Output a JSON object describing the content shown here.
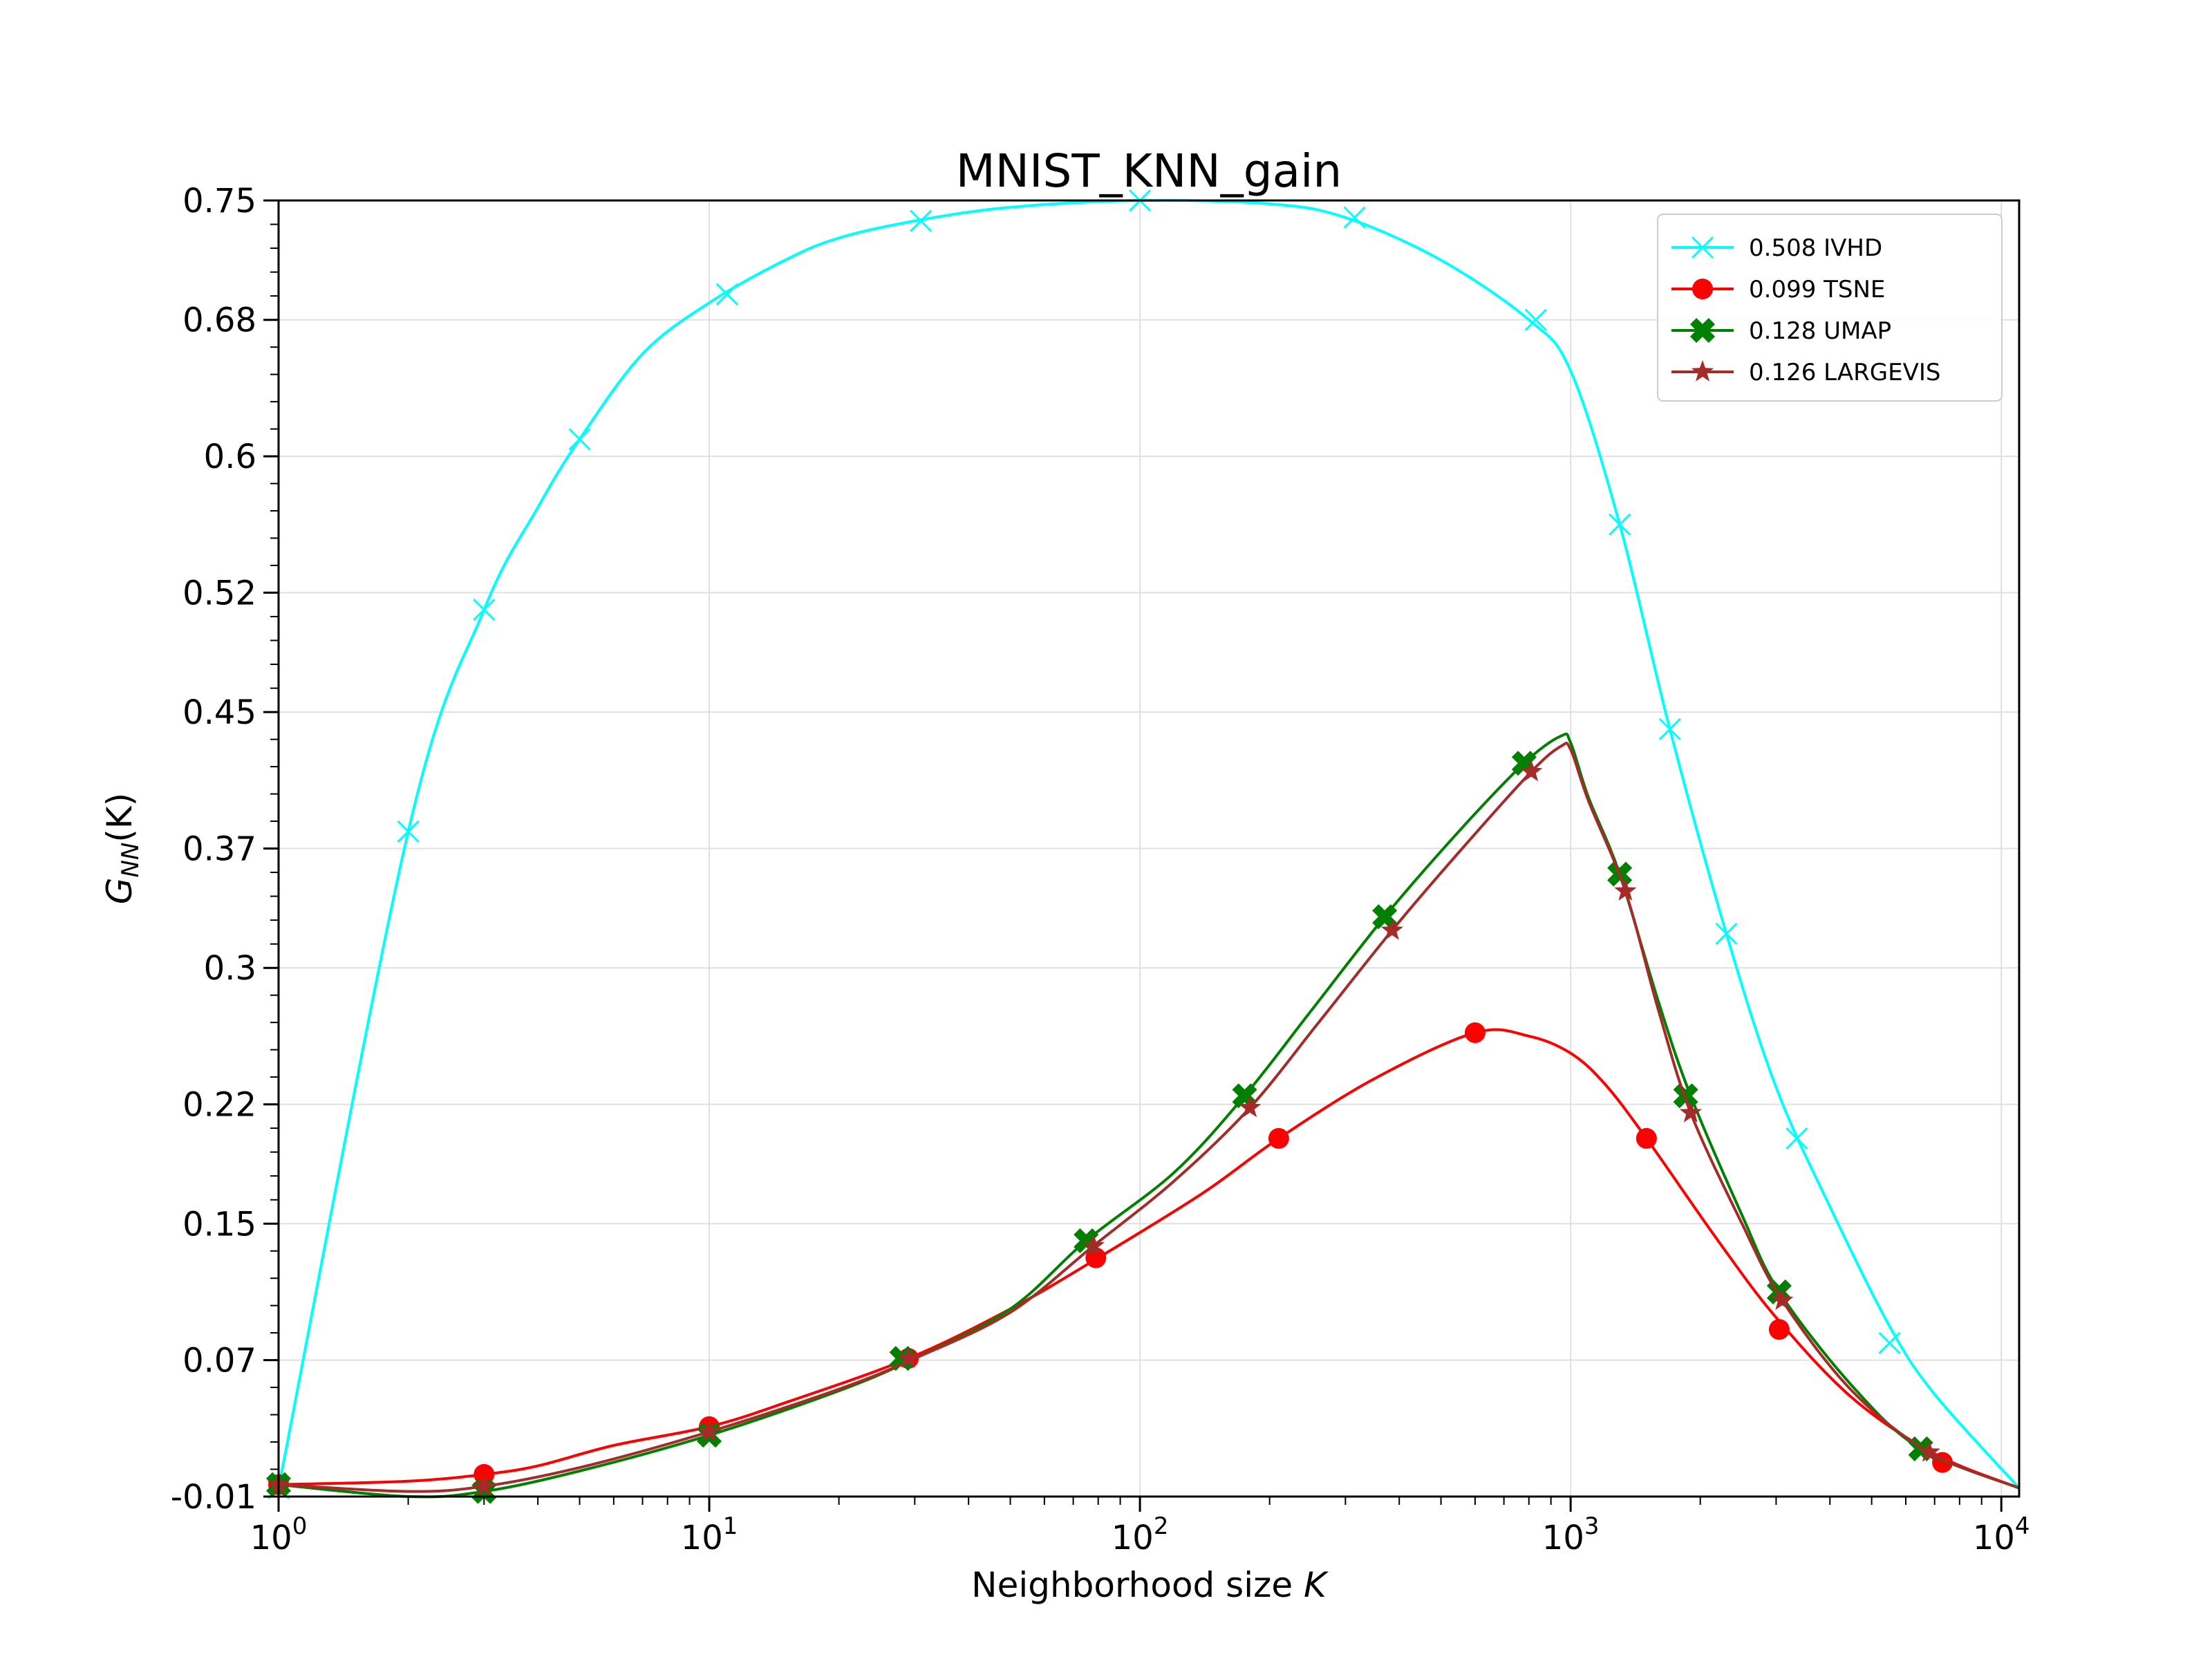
{
  "chart_data": {
    "type": "line",
    "title": "MNIST_KNN_gain",
    "xlabel_prefix": "Neighborhood size ",
    "xlabel_var": "K",
    "ylabel_main": "G",
    "ylabel_sub": "NN",
    "ylabel_arg": "(K)",
    "xscale": "log",
    "xlim": [
      1,
      11000
    ],
    "ylim": [
      -0.01,
      0.75
    ],
    "grid": true,
    "legend_position": "top-right",
    "x_tick_labels": [
      "10",
      "10",
      "10",
      "10",
      "10"
    ],
    "x_tick_exponents": [
      "0",
      "1",
      "2",
      "3",
      "4"
    ],
    "x_ticks": [
      1,
      10,
      100,
      1000,
      10000
    ],
    "y_ticks": [
      -0.01,
      0.07,
      0.15,
      0.22,
      0.3,
      0.37,
      0.45,
      0.52,
      0.6,
      0.68,
      0.75
    ],
    "y_tick_labels": [
      "-0.01",
      "0.07",
      "0.15",
      "0.22",
      "0.3",
      "0.37",
      "0.45",
      "0.52",
      "0.6",
      "0.68",
      "0.75"
    ],
    "series": [
      {
        "name": "0.508 IVHD",
        "color": "#00ffff",
        "marker": "x",
        "x": [
          1,
          2,
          3,
          4,
          5,
          7,
          10,
          15,
          20,
          30,
          50,
          100,
          200,
          300,
          500,
          800,
          1000,
          1300,
          1700,
          2300,
          3000,
          4000,
          5500,
          7000,
          11000
        ],
        "y": [
          -0.005,
          0.38,
          0.51,
          0.57,
          0.61,
          0.66,
          0.69,
          0.715,
          0.728,
          0.738,
          0.746,
          0.75,
          0.748,
          0.74,
          0.715,
          0.68,
          0.65,
          0.56,
          0.44,
          0.32,
          0.23,
          0.16,
          0.09,
          0.05,
          -0.005
        ],
        "markers_x": [
          1,
          2,
          3,
          5,
          11,
          31,
          100,
          315,
          830,
          1300,
          1700,
          2300,
          3350,
          5500
        ],
        "markers_y": [
          -0.005,
          0.38,
          0.51,
          0.61,
          0.695,
          0.738,
          0.75,
          0.74,
          0.68,
          0.56,
          0.44,
          0.32,
          0.2,
          0.08
        ]
      },
      {
        "name": "0.099 TSNE",
        "color": "#ff0000",
        "marker": "o",
        "x": [
          1,
          2,
          3,
          4,
          6,
          10,
          15,
          29,
          50,
          80,
          140,
          210,
          350,
          600,
          800,
          1000,
          1200,
          1500,
          2200,
          3000,
          4500,
          7000,
          11000
        ],
        "y": [
          -0.003,
          -0.001,
          0.003,
          0.008,
          0.02,
          0.031,
          0.045,
          0.071,
          0.1,
          0.13,
          0.168,
          0.2,
          0.235,
          0.262,
          0.26,
          0.25,
          0.232,
          0.2,
          0.14,
          0.095,
          0.048,
          0.015,
          -0.005
        ],
        "markers_x": [
          1,
          3,
          10,
          29,
          79,
          210,
          600,
          1500,
          3050,
          7300
        ],
        "markers_y": [
          -0.003,
          0.003,
          0.031,
          0.071,
          0.13,
          0.2,
          0.262,
          0.2,
          0.088,
          0.01
        ]
      },
      {
        "name": "0.128 UMAP",
        "color": "#008000",
        "marker": "X",
        "x": [
          1,
          2,
          3,
          5,
          10,
          20,
          30,
          50,
          75,
          120,
          175,
          250,
          370,
          550,
          780,
          950,
          1000,
          1100,
          1300,
          1600,
          1900,
          2500,
          3050,
          4500,
          6500,
          11000
        ],
        "y": [
          -0.003,
          -0.01,
          -0.007,
          0.005,
          0.026,
          0.052,
          0.071,
          0.1,
          0.14,
          0.18,
          0.225,
          0.275,
          0.33,
          0.38,
          0.42,
          0.436,
          0.432,
          0.4,
          0.355,
          0.28,
          0.225,
          0.155,
          0.11,
          0.055,
          0.018,
          -0.005
        ],
        "markers_x": [
          1,
          3,
          10,
          28,
          75,
          175,
          370,
          780,
          1300,
          1850,
          3050,
          6500
        ],
        "markers_y": [
          -0.003,
          -0.007,
          0.026,
          0.071,
          0.14,
          0.225,
          0.33,
          0.42,
          0.355,
          0.225,
          0.11,
          0.018
        ]
      },
      {
        "name": "0.126 LARGEVIS",
        "color": "#a52a2a",
        "marker": "*",
        "x": [
          1,
          2,
          3,
          5,
          10,
          20,
          30,
          50,
          78,
          120,
          180,
          260,
          385,
          560,
          810,
          950,
          1000,
          1100,
          1340,
          1600,
          1900,
          2500,
          3100,
          4500,
          6800,
          11000
        ],
        "y": [
          -0.003,
          -0.007,
          -0.004,
          0.007,
          0.028,
          0.053,
          0.071,
          0.098,
          0.137,
          0.175,
          0.218,
          0.268,
          0.322,
          0.37,
          0.415,
          0.43,
          0.428,
          0.398,
          0.345,
          0.275,
          0.215,
          0.15,
          0.105,
          0.052,
          0.016,
          -0.005
        ],
        "markers_x": [
          1,
          3,
          10,
          29,
          78,
          180,
          385,
          810,
          1340,
          1900,
          3100,
          6800
        ],
        "markers_y": [
          -0.003,
          -0.004,
          0.028,
          0.071,
          0.137,
          0.218,
          0.322,
          0.415,
          0.345,
          0.215,
          0.105,
          0.016
        ]
      }
    ]
  }
}
